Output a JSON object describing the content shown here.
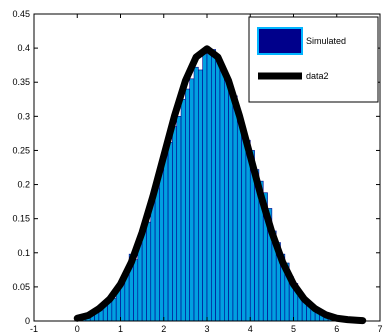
{
  "chart_data": {
    "type": "bar",
    "xlim": [
      -1,
      7
    ],
    "ylim": [
      0,
      0.45
    ],
    "xticks": [
      -1,
      0,
      1,
      2,
      3,
      4,
      5,
      6,
      7
    ],
    "xtick_labels": [
      "-1",
      "0",
      "1",
      "2",
      "3",
      "4",
      "5",
      "6",
      "7"
    ],
    "yticks": [
      0,
      0.05,
      0.1,
      0.15,
      0.2,
      0.25,
      0.3,
      0.35,
      0.4,
      0.45
    ],
    "ytick_labels": [
      "0",
      "0.05",
      "0.1",
      "0.15",
      "0.2",
      "0.25",
      "0.3",
      "0.35",
      "0.4",
      "0.45"
    ],
    "grid": false,
    "legend_position": "top-right",
    "series": [
      {
        "name": "Simulated",
        "type": "bar",
        "color": "#00a0e0",
        "edge_color": "#00008b",
        "x": [
          0.05,
          0.15,
          0.25,
          0.35,
          0.45,
          0.55,
          0.65,
          0.75,
          0.85,
          0.95,
          1.05,
          1.15,
          1.25,
          1.35,
          1.45,
          1.55,
          1.65,
          1.75,
          1.85,
          1.95,
          2.05,
          2.15,
          2.25,
          2.35,
          2.45,
          2.55,
          2.65,
          2.75,
          2.85,
          2.95,
          3.05,
          3.15,
          3.25,
          3.35,
          3.45,
          3.55,
          3.65,
          3.75,
          3.85,
          3.95,
          4.05,
          4.15,
          4.25,
          4.35,
          4.45,
          4.55,
          4.65,
          4.75,
          4.85,
          4.95,
          5.05,
          5.15,
          5.25,
          5.35,
          5.45,
          5.55,
          5.65,
          5.75,
          5.85,
          5.95
        ],
        "values": [
          0.005,
          0.006,
          0.008,
          0.01,
          0.013,
          0.016,
          0.024,
          0.035,
          0.033,
          0.048,
          0.055,
          0.075,
          0.098,
          0.09,
          0.115,
          0.14,
          0.145,
          0.175,
          0.195,
          0.225,
          0.245,
          0.262,
          0.285,
          0.3,
          0.325,
          0.34,
          0.355,
          0.372,
          0.368,
          0.392,
          0.395,
          0.398,
          0.385,
          0.372,
          0.36,
          0.34,
          0.33,
          0.3,
          0.282,
          0.265,
          0.25,
          0.222,
          0.205,
          0.188,
          0.165,
          0.132,
          0.115,
          0.098,
          0.085,
          0.065,
          0.055,
          0.04,
          0.032,
          0.022,
          0.018,
          0.013,
          0.009,
          0.006,
          0.004,
          0.003
        ]
      },
      {
        "name": "data2",
        "type": "line",
        "color": "#000000",
        "x": [
          0.0,
          0.25,
          0.5,
          0.75,
          1.0,
          1.25,
          1.5,
          1.75,
          2.0,
          2.25,
          2.5,
          2.75,
          3.0,
          3.25,
          3.5,
          3.75,
          4.0,
          4.25,
          4.5,
          4.75,
          5.0,
          5.25,
          5.5,
          5.75,
          6.0,
          6.25,
          6.5,
          6.6
        ],
        "values": [
          0.004,
          0.008,
          0.018,
          0.032,
          0.054,
          0.086,
          0.13,
          0.183,
          0.242,
          0.301,
          0.352,
          0.387,
          0.399,
          0.387,
          0.352,
          0.301,
          0.242,
          0.183,
          0.13,
          0.086,
          0.054,
          0.032,
          0.018,
          0.009,
          0.004,
          0.002,
          0.001,
          0.0006
        ]
      }
    ]
  }
}
